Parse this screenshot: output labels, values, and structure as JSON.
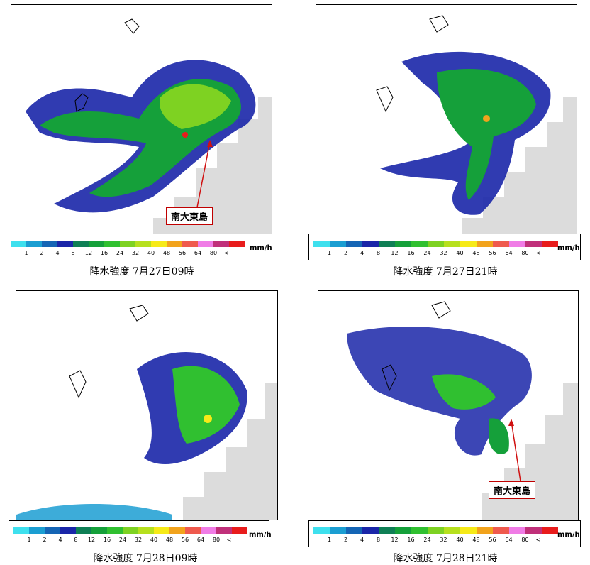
{
  "legend": {
    "colors": [
      "#3ee0ee",
      "#1b9ed2",
      "#1565b5",
      "#1a26a8",
      "#0f7f55",
      "#15a03a",
      "#30c030",
      "#7ed222",
      "#b6e01e",
      "#f6ea18",
      "#f2a31c",
      "#ef5a4e",
      "#f07ce6",
      "#c0307a",
      "#e81c1c"
    ],
    "labels": [
      "1",
      "2",
      "4",
      "8",
      "12",
      "16",
      "24",
      "32",
      "40",
      "48",
      "56",
      "64",
      "80",
      "<"
    ],
    "unit": "mm/h"
  },
  "panels": [
    {
      "caption": "降水強度  7月27日09時",
      "callout": "南大東島"
    },
    {
      "caption": "降水強度  7月27日21時",
      "callout": ""
    },
    {
      "caption": "降水強度  7月28日09時",
      "callout": ""
    },
    {
      "caption": "降水強度  7月28日21時",
      "callout": "南大東島"
    }
  ],
  "colors": {
    "land_gray": "#dcdcdc",
    "arrow": "#d01010"
  }
}
